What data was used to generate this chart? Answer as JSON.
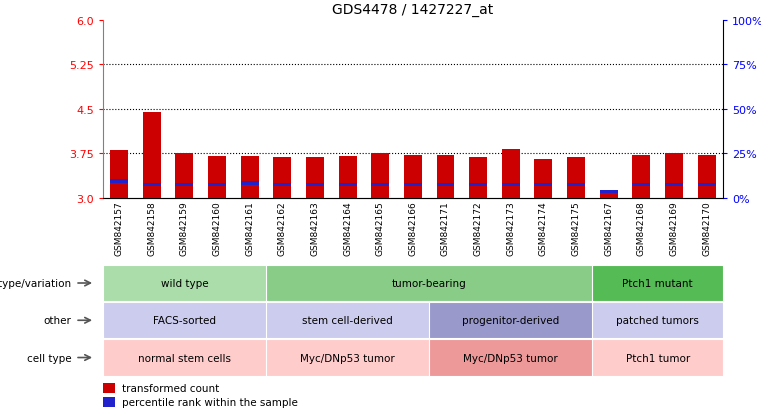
{
  "title": "GDS4478 / 1427227_at",
  "samples": [
    "GSM842157",
    "GSM842158",
    "GSM842159",
    "GSM842160",
    "GSM842161",
    "GSM842162",
    "GSM842163",
    "GSM842164",
    "GSM842165",
    "GSM842166",
    "GSM842171",
    "GSM842172",
    "GSM842173",
    "GSM842174",
    "GSM842175",
    "GSM842167",
    "GSM842168",
    "GSM842169",
    "GSM842170"
  ],
  "red_values": [
    3.8,
    4.45,
    3.75,
    3.7,
    3.7,
    3.68,
    3.68,
    3.7,
    3.75,
    3.72,
    3.72,
    3.68,
    3.82,
    3.65,
    3.68,
    3.13,
    3.72,
    3.75,
    3.72
  ],
  "blue_values": [
    3.28,
    3.22,
    3.22,
    3.22,
    3.25,
    3.22,
    3.22,
    3.22,
    3.22,
    3.22,
    3.22,
    3.22,
    3.22,
    3.22,
    3.22,
    3.1,
    3.22,
    3.22,
    3.22
  ],
  "ymin": 3.0,
  "ymax": 6.0,
  "yticks_left": [
    3.0,
    3.75,
    4.5,
    5.25,
    6.0
  ],
  "yticks_right": [
    0,
    25,
    50,
    75,
    100
  ],
  "hlines": [
    3.75,
    4.5,
    5.25
  ],
  "bar_color": "#cc0000",
  "blue_color": "#2222cc",
  "bar_width": 0.55,
  "groups": [
    {
      "label": "wild type",
      "start": 0,
      "end": 4,
      "color": "#aaddaa"
    },
    {
      "label": "tumor-bearing",
      "start": 5,
      "end": 14,
      "color": "#88cc88"
    },
    {
      "label": "Ptch1 mutant",
      "start": 15,
      "end": 18,
      "color": "#55bb55"
    }
  ],
  "other_groups": [
    {
      "label": "FACS-sorted",
      "start": 0,
      "end": 4,
      "color": "#ccccee"
    },
    {
      "label": "stem cell-derived",
      "start": 5,
      "end": 9,
      "color": "#ccccee"
    },
    {
      "label": "progenitor-derived",
      "start": 10,
      "end": 14,
      "color": "#9999cc"
    },
    {
      "label": "patched tumors",
      "start": 15,
      "end": 18,
      "color": "#ccccee"
    }
  ],
  "celltype_groups": [
    {
      "label": "normal stem cells",
      "start": 0,
      "end": 4,
      "color": "#ffcccc"
    },
    {
      "label": "Myc/DNp53 tumor",
      "start": 5,
      "end": 9,
      "color": "#ffcccc"
    },
    {
      "label": "Myc/DNp53 tumor",
      "start": 10,
      "end": 14,
      "color": "#ee9999"
    },
    {
      "label": "Ptch1 tumor",
      "start": 15,
      "end": 18,
      "color": "#ffcccc"
    }
  ],
  "row_labels": [
    "genotype/variation",
    "other",
    "cell type"
  ],
  "legend_items": [
    {
      "label": "transformed count",
      "color": "#cc0000"
    },
    {
      "label": "percentile rank within the sample",
      "color": "#2222cc"
    }
  ]
}
